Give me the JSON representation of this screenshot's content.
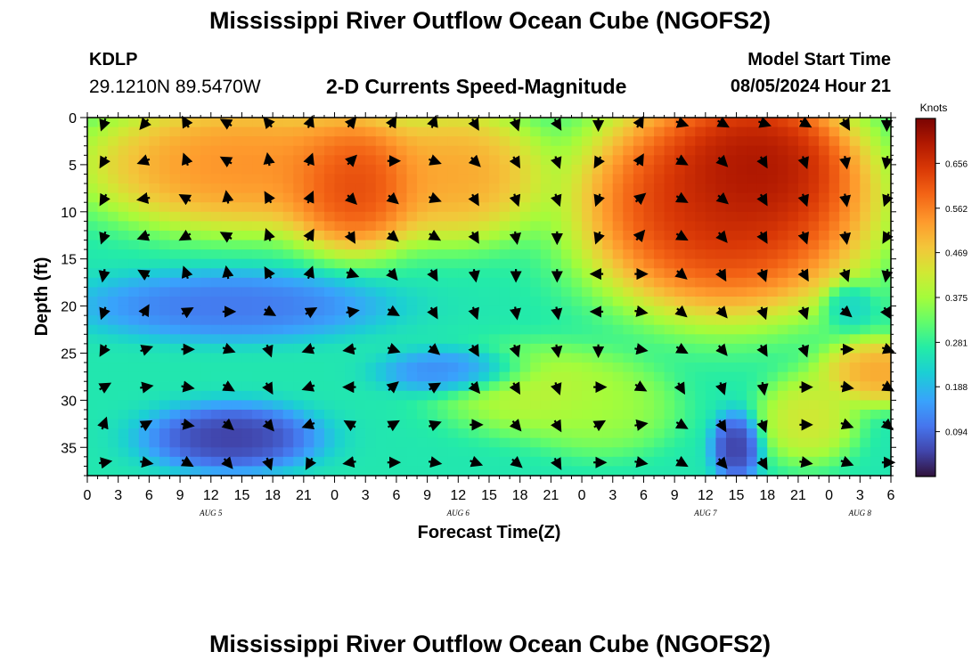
{
  "header": {
    "title": "Mississippi River Outflow Ocean Cube (NGOFS2)",
    "station_id": "KDLP",
    "station_coords": "29.1210N  89.5470W",
    "subtitle": "2-D Currents Speed-Magnitude",
    "model_start_label": "Model Start Time",
    "model_start_value": "08/05/2024 Hour 21"
  },
  "footer": {
    "title": "Mississippi River Outflow Ocean Cube (NGOFS2)"
  },
  "chart_data": {
    "type": "heatmap",
    "title": "2-D Currents Speed-Magnitude",
    "xlabel": "Forecast Time(Z)",
    "ylabel": "Depth (ft)",
    "x_range_hours": [
      0,
      78
    ],
    "x_tick_labels": [
      "0",
      "3",
      "6",
      "9",
      "12",
      "15",
      "18",
      "21",
      "0",
      "3",
      "6",
      "9",
      "12",
      "15",
      "18",
      "21",
      "0",
      "3",
      "6",
      "9",
      "12",
      "15",
      "18",
      "21",
      "0",
      "3",
      "6"
    ],
    "date_labels": [
      {
        "label": "AUG 5",
        "hour": 12
      },
      {
        "label": "AUG 6",
        "hour": 36
      },
      {
        "label": "AUG 7",
        "hour": 60
      },
      {
        "label": "AUG 8",
        "hour": 75
      }
    ],
    "y_range_ft": [
      0,
      38
    ],
    "y_ticks": [
      0,
      5,
      10,
      15,
      20,
      25,
      30,
      35
    ],
    "y_tick_labels": [
      "0",
      "5",
      "10",
      "15",
      "20",
      "25",
      "30",
      "35"
    ],
    "colorbar": {
      "units": "Knots",
      "min": 0.0,
      "max": 0.75,
      "ticks": [
        0.094,
        0.188,
        0.281,
        0.375,
        0.469,
        0.562,
        0.656
      ],
      "tick_labels": [
        "0.094",
        "0.188",
        "0.281",
        "0.375",
        "0.469",
        "0.562",
        "0.656"
      ]
    },
    "speed_features": [
      {
        "desc": "surface jet day 1",
        "hour": 15,
        "depth_ft": 5,
        "hour_span": 13,
        "depth_span": 6,
        "knots": 0.58
      },
      {
        "desc": "surface jet day 1 core",
        "hour": 26,
        "depth_ft": 7,
        "hour_span": 6,
        "depth_span": 6,
        "knots": 0.68
      },
      {
        "desc": "surface jet day 2",
        "hour": 36,
        "depth_ft": 6,
        "hour_span": 7,
        "depth_span": 6,
        "knots": 0.55
      },
      {
        "desc": "surface jet day 3",
        "hour": 62,
        "depth_ft": 9,
        "hour_span": 12,
        "depth_span": 10,
        "knots": 0.72
      },
      {
        "desc": "surface jet day 3 core",
        "hour": 65,
        "depth_ft": 5,
        "hour_span": 7,
        "depth_span": 6,
        "knots": 0.75
      },
      {
        "desc": "lower band warm",
        "hour": 44,
        "depth_ft": 29,
        "hour_span": 8,
        "depth_span": 4,
        "knots": 0.42
      },
      {
        "desc": "lower band warm 2",
        "hour": 50,
        "depth_ft": 31,
        "hour_span": 6,
        "depth_span": 4,
        "knots": 0.38
      },
      {
        "desc": "deep right warm",
        "hour": 77,
        "depth_ft": 27,
        "hour_span": 5,
        "depth_span": 3,
        "knots": 0.55
      },
      {
        "desc": "deep right warm 2",
        "hour": 70,
        "depth_ft": 32,
        "hour_span": 4,
        "depth_span": 4,
        "knots": 0.45
      },
      {
        "desc": "slow mid-depth",
        "hour": 14,
        "depth_ft": 20,
        "hour_span": 12,
        "depth_span": 3,
        "knots": 0.09
      },
      {
        "desc": "slow deep left",
        "hour": 14,
        "depth_ft": 34,
        "hour_span": 7,
        "depth_span": 3,
        "knots": 0.02
      },
      {
        "desc": "slow deep",
        "hour": 63,
        "depth_ft": 35,
        "hour_span": 2,
        "depth_span": 3,
        "knots": 0.02
      },
      {
        "desc": "slow lower mid",
        "hour": 36,
        "depth_ft": 27,
        "hour_span": 6,
        "depth_span": 2,
        "knots": 0.1
      },
      {
        "desc": "slow upper right",
        "hour": 74,
        "depth_ft": 20,
        "hour_span": 2,
        "depth_span": 2,
        "knots": 0.22
      }
    ],
    "vector_rows_ft": [
      0,
      4,
      8,
      12,
      16,
      20,
      24,
      28,
      32,
      36
    ],
    "vector_cols_hours": [
      0,
      4,
      8,
      12,
      16,
      20,
      24,
      28,
      32,
      36,
      40,
      44,
      48,
      52,
      56,
      60,
      64,
      68,
      72,
      76
    ],
    "vector_directions_deg": [
      [
        200,
        220,
        330,
        300,
        320,
        20,
        40,
        30,
        20,
        150,
        160,
        150,
        180,
        30,
        110,
        120,
        110,
        120,
        150,
        180
      ],
      [
        210,
        250,
        340,
        300,
        350,
        20,
        45,
        90,
        110,
        135,
        150,
        160,
        210,
        30,
        120,
        135,
        150,
        160,
        170,
        190
      ],
      [
        210,
        260,
        300,
        350,
        330,
        25,
        135,
        130,
        110,
        150,
        160,
        160,
        200,
        50,
        120,
        130,
        150,
        160,
        170,
        200
      ],
      [
        200,
        250,
        240,
        300,
        340,
        30,
        150,
        130,
        120,
        150,
        170,
        180,
        200,
        40,
        120,
        140,
        150,
        160,
        170,
        210
      ],
      [
        190,
        300,
        340,
        350,
        330,
        20,
        110,
        140,
        150,
        170,
        180,
        180,
        270,
        90,
        130,
        150,
        160,
        150,
        160,
        190
      ],
      [
        200,
        30,
        60,
        90,
        120,
        60,
        80,
        120,
        150,
        160,
        170,
        170,
        270,
        100,
        130,
        140,
        160,
        160,
        130,
        150
      ],
      [
        210,
        70,
        90,
        110,
        160,
        250,
        260,
        110,
        130,
        150,
        160,
        170,
        180,
        100,
        120,
        140,
        150,
        160,
        90,
        110
      ],
      [
        60,
        80,
        100,
        120,
        150,
        250,
        270,
        50,
        60,
        140,
        150,
        160,
        90,
        120,
        150,
        160,
        170,
        90,
        100,
        120
      ],
      [
        20,
        60,
        100,
        130,
        140,
        250,
        300,
        60,
        70,
        90,
        140,
        150,
        60,
        80,
        120,
        150,
        160,
        90,
        110,
        130
      ],
      [
        80,
        100,
        120,
        140,
        160,
        210,
        260,
        90,
        100,
        110,
        130,
        150,
        90,
        100,
        120,
        140,
        150,
        100,
        110,
        90
      ]
    ]
  }
}
